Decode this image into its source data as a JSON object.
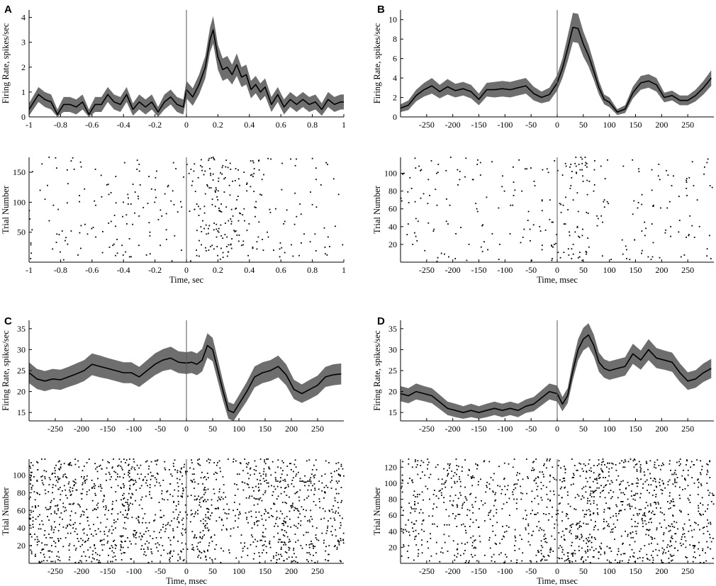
{
  "figure": {
    "panels": [
      "A",
      "B",
      "C",
      "D"
    ]
  },
  "chart_data": [
    {
      "panel": "A",
      "type": "line",
      "ylabel": "Firing Rate, spikes/sec",
      "xlim": [
        -1,
        1
      ],
      "ylim": [
        0,
        4.3
      ],
      "xticks": [
        -1,
        -0.8,
        -0.6,
        -0.4,
        -0.2,
        0,
        0.2,
        0.4,
        0.6,
        0.8,
        1
      ],
      "xticklabels": [
        "-1",
        "-0.8",
        "-0.6",
        "-0.4",
        "-0.2",
        "0",
        "0.2",
        "0.4",
        "0.6",
        "0.8",
        "1"
      ],
      "yticks": [
        0,
        1,
        2,
        3,
        4
      ],
      "x": [
        -1,
        -0.94,
        -0.9,
        -0.86,
        -0.82,
        -0.78,
        -0.74,
        -0.7,
        -0.66,
        -0.62,
        -0.58,
        -0.54,
        -0.5,
        -0.46,
        -0.42,
        -0.38,
        -0.34,
        -0.3,
        -0.26,
        -0.22,
        -0.18,
        -0.14,
        -0.1,
        -0.06,
        -0.02,
        0,
        0.04,
        0.08,
        0.12,
        0.15,
        0.17,
        0.2,
        0.23,
        0.26,
        0.29,
        0.32,
        0.35,
        0.38,
        0.41,
        0.44,
        0.47,
        0.5,
        0.54,
        0.58,
        0.62,
        0.66,
        0.7,
        0.74,
        0.78,
        0.82,
        0.86,
        0.9,
        0.94,
        0.98,
        1
      ],
      "y": [
        0.3,
        0.9,
        0.7,
        0.6,
        0.1,
        0.5,
        0.5,
        0.4,
        0.6,
        0.1,
        0.5,
        0.5,
        0.9,
        0.6,
        0.5,
        0.9,
        0.3,
        0.6,
        0.4,
        0.6,
        0.2,
        0.6,
        0.8,
        0.5,
        0.4,
        1.1,
        0.8,
        1.3,
        2.0,
        3.1,
        3.5,
        2.4,
        1.9,
        2.0,
        1.7,
        2.1,
        1.6,
        1.7,
        1.1,
        1.3,
        1.0,
        1.2,
        0.5,
        0.9,
        0.4,
        0.7,
        0.5,
        0.7,
        0.5,
        0.6,
        0.3,
        0.7,
        0.5,
        0.6,
        0.6
      ],
      "err": [
        0.25,
        0.3,
        0.3,
        0.3,
        0.2,
        0.3,
        0.3,
        0.3,
        0.3,
        0.2,
        0.3,
        0.3,
        0.3,
        0.3,
        0.3,
        0.3,
        0.25,
        0.3,
        0.3,
        0.3,
        0.2,
        0.3,
        0.3,
        0.3,
        0.3,
        0.35,
        0.35,
        0.4,
        0.45,
        0.5,
        0.55,
        0.5,
        0.45,
        0.45,
        0.4,
        0.45,
        0.4,
        0.4,
        0.35,
        0.35,
        0.35,
        0.35,
        0.3,
        0.3,
        0.3,
        0.3,
        0.3,
        0.3,
        0.3,
        0.3,
        0.25,
        0.3,
        0.3,
        0.3,
        0.3
      ]
    },
    {
      "panel": "A",
      "type": "scatter",
      "xlabel": "Time, sec",
      "ylabel": "Trial Number",
      "xlim": [
        -1,
        1
      ],
      "ylim": [
        0,
        175
      ],
      "xticks": [
        -1,
        -0.8,
        -0.6,
        -0.4,
        -0.2,
        0,
        0.2,
        0.4,
        0.6,
        0.8,
        1
      ],
      "xticklabels": [
        "-1",
        "-0.8",
        "-0.6",
        "-0.4",
        "-0.2",
        "0",
        "0.2",
        "0.4",
        "0.6",
        "0.8",
        "1"
      ],
      "yticks": [
        50,
        100,
        150
      ],
      "raster": {
        "n_trials": 175,
        "density": [
          [
            -1,
            1.0
          ],
          [
            0.0,
            1.0
          ],
          [
            0.1,
            2.5
          ],
          [
            0.17,
            5.0
          ],
          [
            0.3,
            3.0
          ],
          [
            0.45,
            1.8
          ],
          [
            0.6,
            1.0
          ],
          [
            1,
            1.0
          ]
        ],
        "count": 380,
        "seed": 11
      }
    },
    {
      "panel": "B",
      "type": "line",
      "ylabel": "Firing Rate, spikes/sec",
      "xlim": [
        -300,
        300
      ],
      "ylim": [
        0,
        11
      ],
      "xticks": [
        -250,
        -200,
        -150,
        -100,
        -50,
        0,
        50,
        100,
        150,
        200,
        250
      ],
      "xticklabels": [
        "-250",
        "-200",
        "-150",
        "-100",
        "-50",
        "0",
        "50",
        "100",
        "150",
        "200",
        "250"
      ],
      "yticks": [
        0,
        2,
        4,
        6,
        8,
        10
      ],
      "x": [
        -300,
        -285,
        -270,
        -255,
        -240,
        -225,
        -210,
        -195,
        -180,
        -165,
        -150,
        -135,
        -120,
        -105,
        -90,
        -75,
        -60,
        -45,
        -30,
        -15,
        0,
        10,
        20,
        30,
        40,
        50,
        60,
        70,
        80,
        90,
        100,
        115,
        130,
        145,
        160,
        175,
        190,
        205,
        220,
        235,
        250,
        265,
        280,
        295
      ],
      "y": [
        0.9,
        1.2,
        2.2,
        2.8,
        3.2,
        2.6,
        3.1,
        2.7,
        2.9,
        2.6,
        1.8,
        2.8,
        2.8,
        2.9,
        2.8,
        3.0,
        3.2,
        2.4,
        2.0,
        2.3,
        3.5,
        5.0,
        7.0,
        9.2,
        9.1,
        7.5,
        6.3,
        4.7,
        3.0,
        1.8,
        1.5,
        0.5,
        0.8,
        2.5,
        3.5,
        3.7,
        3.3,
        2.0,
        2.2,
        1.7,
        1.7,
        2.2,
        3.0,
        4.0
      ],
      "err": [
        0.4,
        0.5,
        0.6,
        0.7,
        0.8,
        0.7,
        0.8,
        0.7,
        0.7,
        0.7,
        0.6,
        0.7,
        0.8,
        0.8,
        0.8,
        0.8,
        0.8,
        0.7,
        0.6,
        0.7,
        0.8,
        1.0,
        1.3,
        1.5,
        1.5,
        1.3,
        1.1,
        0.9,
        0.7,
        0.5,
        0.5,
        0.3,
        0.4,
        0.6,
        0.7,
        0.7,
        0.7,
        0.5,
        0.5,
        0.5,
        0.5,
        0.6,
        0.7,
        0.8
      ]
    },
    {
      "panel": "B",
      "type": "scatter",
      "xlabel": "Time, msec",
      "ylabel": "Trial Number",
      "xlim": [
        -300,
        300
      ],
      "ylim": [
        0,
        118
      ],
      "xticks": [
        -250,
        -200,
        -150,
        -100,
        -50,
        0,
        50,
        100,
        150,
        200,
        250
      ],
      "xticklabels": [
        "-250",
        "-200",
        "-150",
        "-100",
        "-50",
        "0",
        "50",
        "100",
        "150",
        "200",
        "250"
      ],
      "yticks": [
        20,
        40,
        60,
        80,
        100
      ],
      "raster": {
        "n_trials": 118,
        "density": [
          [
            -300,
            1.0
          ],
          [
            0,
            1.0
          ],
          [
            20,
            2.5
          ],
          [
            40,
            4.0
          ],
          [
            60,
            2.5
          ],
          [
            90,
            0.6
          ],
          [
            130,
            0.6
          ],
          [
            170,
            1.5
          ],
          [
            200,
            1.2
          ],
          [
            300,
            1.0
          ]
        ],
        "count": 300,
        "seed": 23
      }
    },
    {
      "panel": "C",
      "type": "line",
      "ylabel": "Firing Rate, spikes/sec",
      "xlim": [
        -300,
        300
      ],
      "ylim": [
        13,
        37
      ],
      "xticks": [
        -250,
        -200,
        -150,
        -100,
        -50,
        0,
        50,
        100,
        150,
        200,
        250
      ],
      "xticklabels": [
        "-250",
        "-200",
        "-150",
        "-100",
        "-50",
        "0",
        "50",
        "100",
        "150",
        "200",
        "250"
      ],
      "yticks": [
        15,
        20,
        25,
        30,
        35
      ],
      "x": [
        -300,
        -285,
        -270,
        -255,
        -240,
        -225,
        -210,
        -195,
        -180,
        -165,
        -150,
        -135,
        -120,
        -105,
        -90,
        -75,
        -60,
        -45,
        -30,
        -15,
        0,
        10,
        20,
        30,
        40,
        50,
        60,
        70,
        80,
        90,
        100,
        115,
        130,
        145,
        160,
        175,
        190,
        205,
        220,
        235,
        250,
        265,
        280,
        295
      ],
      "y": [
        24.5,
        23.0,
        22.5,
        23.0,
        22.8,
        23.5,
        24.2,
        25.0,
        26.5,
        26.0,
        25.5,
        25.0,
        24.5,
        24.5,
        23.5,
        25.0,
        26.5,
        27.5,
        28.0,
        27.0,
        26.8,
        27.0,
        26.5,
        27.5,
        31.0,
        30.0,
        25.0,
        20.0,
        15.5,
        15.0,
        17.0,
        20.0,
        23.5,
        24.5,
        25.0,
        26.0,
        24.0,
        20.5,
        19.5,
        20.5,
        21.5,
        23.5,
        24.0,
        24.2
      ],
      "err": [
        2.5,
        2.4,
        2.4,
        2.4,
        2.4,
        2.4,
        2.5,
        2.5,
        2.6,
        2.6,
        2.5,
        2.5,
        2.5,
        2.5,
        2.4,
        2.5,
        2.6,
        2.6,
        2.7,
        2.6,
        2.6,
        2.6,
        2.6,
        2.7,
        2.9,
        2.8,
        2.6,
        2.3,
        2.0,
        2.0,
        2.1,
        2.3,
        2.5,
        2.5,
        2.5,
        2.6,
        2.5,
        2.3,
        2.2,
        2.3,
        2.3,
        2.4,
        2.5,
        2.5
      ]
    },
    {
      "panel": "C",
      "type": "scatter",
      "xlabel": "Time, msec",
      "ylabel": "Trial Number",
      "xlim": [
        -300,
        300
      ],
      "ylim": [
        0,
        118
      ],
      "xticks": [
        -250,
        -200,
        -150,
        -100,
        -50,
        0,
        50,
        100,
        150,
        200,
        250
      ],
      "xticklabels": [
        "-250",
        "-200",
        "-150",
        "-100",
        "-50",
        "0",
        "50",
        "100",
        "150",
        "200",
        "250"
      ],
      "yticks": [
        20,
        40,
        60,
        80,
        100
      ],
      "raster": {
        "n_trials": 118,
        "density": [
          [
            -300,
            1.0
          ],
          [
            0,
            1.0
          ],
          [
            40,
            1.3
          ],
          [
            80,
            0.5
          ],
          [
            100,
            0.5
          ],
          [
            150,
            1.1
          ],
          [
            300,
            1.0
          ]
        ],
        "count": 1500,
        "seed": 37
      }
    },
    {
      "panel": "D",
      "type": "line",
      "ylabel": "Firing Rate, spikes/sec",
      "xlim": [
        -300,
        300
      ],
      "ylim": [
        13,
        37
      ],
      "xticks": [
        -250,
        -200,
        -150,
        -100,
        -50,
        0,
        50,
        100,
        150,
        200,
        250
      ],
      "xticklabels": [
        "-250",
        "-200",
        "-150",
        "-100",
        "-50",
        "0",
        "50",
        "100",
        "150",
        "200",
        "250"
      ],
      "yticks": [
        15,
        20,
        25,
        30,
        35
      ],
      "x": [
        -300,
        -285,
        -270,
        -255,
        -240,
        -225,
        -210,
        -195,
        -180,
        -165,
        -150,
        -135,
        -120,
        -105,
        -90,
        -75,
        -60,
        -45,
        -30,
        -15,
        0,
        10,
        20,
        30,
        40,
        50,
        60,
        70,
        80,
        90,
        100,
        115,
        130,
        145,
        160,
        175,
        190,
        205,
        220,
        235,
        250,
        265,
        280,
        295
      ],
      "y": [
        19.5,
        19.0,
        20.0,
        19.5,
        19.0,
        17.5,
        16.0,
        15.5,
        15.0,
        15.5,
        15.0,
        15.5,
        16.0,
        15.5,
        16.0,
        15.5,
        16.5,
        17.0,
        18.5,
        20.0,
        19.5,
        17.0,
        19.0,
        25.0,
        30.0,
        32.5,
        33.5,
        31.0,
        27.0,
        25.5,
        25.0,
        25.5,
        26.0,
        29.0,
        27.5,
        30.0,
        28.0,
        27.5,
        27.0,
        24.5,
        22.5,
        23.0,
        24.5,
        25.5
      ],
      "err": [
        1.8,
        1.8,
        1.9,
        1.8,
        1.8,
        1.7,
        1.6,
        1.6,
        1.5,
        1.6,
        1.5,
        1.6,
        1.6,
        1.6,
        1.6,
        1.6,
        1.6,
        1.7,
        1.8,
        1.9,
        1.9,
        1.7,
        1.8,
        2.2,
        2.5,
        2.7,
        2.8,
        2.6,
        2.3,
        2.2,
        2.2,
        2.2,
        2.2,
        2.4,
        2.3,
        2.5,
        2.4,
        2.3,
        2.3,
        2.2,
        2.1,
        2.1,
        2.2,
        2.3
      ]
    },
    {
      "panel": "D",
      "type": "scatter",
      "xlabel": "Time, msec",
      "ylabel": "Trial Number",
      "xlim": [
        -300,
        300
      ],
      "ylim": [
        0,
        130
      ],
      "xticks": [
        -250,
        -200,
        -150,
        -100,
        -50,
        0,
        50,
        100,
        150,
        200,
        250
      ],
      "xticklabels": [
        "-250",
        "-200",
        "-150",
        "-100",
        "-50",
        "0",
        "50",
        "100",
        "150",
        "200",
        "250"
      ],
      "yticks": [
        20,
        40,
        60,
        80,
        100,
        120
      ],
      "raster": {
        "n_trials": 130,
        "density": [
          [
            -300,
            1.0
          ],
          [
            -150,
            0.8
          ],
          [
            0,
            1.0
          ],
          [
            40,
            1.2
          ],
          [
            60,
            1.8
          ],
          [
            80,
            1.5
          ],
          [
            150,
            1.4
          ],
          [
            300,
            1.2
          ]
        ],
        "count": 1300,
        "seed": 53
      }
    }
  ]
}
